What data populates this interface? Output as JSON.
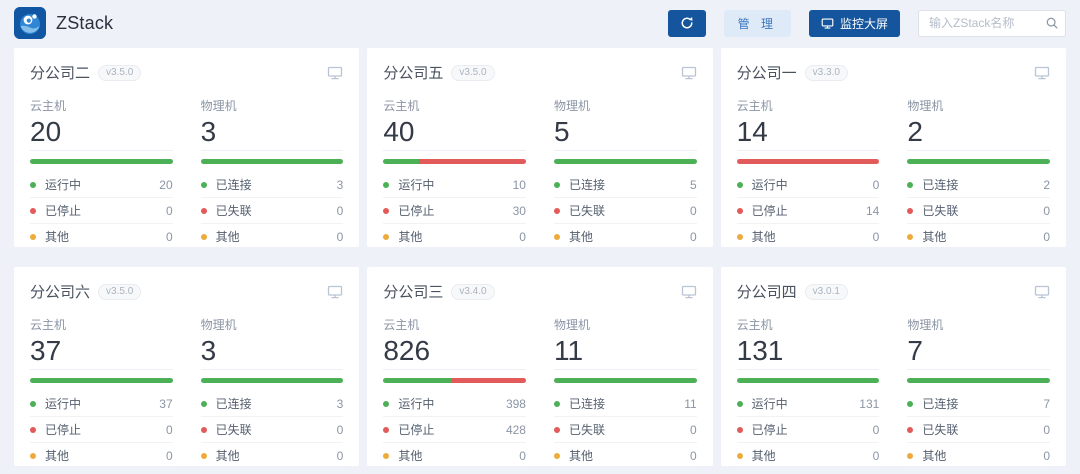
{
  "colors": {
    "primary": "#15559d",
    "green": "#4cb056",
    "red": "#e25a5a",
    "yellow": "#edab3d"
  },
  "header": {
    "app_title": "ZStack",
    "manage_label": "管 理",
    "monitor_label": "监控大屏",
    "search_placeholder": "输入ZStack名称",
    "icons": {
      "refresh": "refresh-icon",
      "monitor": "monitor-icon",
      "search": "search-icon"
    }
  },
  "cards": [
    {
      "title": "分公司二",
      "version": "v3.5.0",
      "vm": {
        "label": "云主机",
        "total": "20",
        "green_pct": 100,
        "red_pct": 0,
        "rows": [
          {
            "label": "运行中",
            "value": "20"
          },
          {
            "label": "已停止",
            "value": "0"
          },
          {
            "label": "其他",
            "value": "0"
          }
        ]
      },
      "host": {
        "label": "物理机",
        "total": "3",
        "green_pct": 100,
        "red_pct": 0,
        "rows": [
          {
            "label": "已连接",
            "value": "3"
          },
          {
            "label": "已失联",
            "value": "0"
          },
          {
            "label": "其他",
            "value": "0"
          }
        ]
      }
    },
    {
      "title": "分公司五",
      "version": "v3.5.0",
      "vm": {
        "label": "云主机",
        "total": "40",
        "green_pct": 25,
        "red_pct": 75,
        "rows": [
          {
            "label": "运行中",
            "value": "10"
          },
          {
            "label": "已停止",
            "value": "30"
          },
          {
            "label": "其他",
            "value": "0"
          }
        ]
      },
      "host": {
        "label": "物理机",
        "total": "5",
        "green_pct": 100,
        "red_pct": 0,
        "rows": [
          {
            "label": "已连接",
            "value": "5"
          },
          {
            "label": "已失联",
            "value": "0"
          },
          {
            "label": "其他",
            "value": "0"
          }
        ]
      }
    },
    {
      "title": "分公司一",
      "version": "v3.3.0",
      "vm": {
        "label": "云主机",
        "total": "14",
        "green_pct": 0,
        "red_pct": 100,
        "rows": [
          {
            "label": "运行中",
            "value": "0"
          },
          {
            "label": "已停止",
            "value": "14"
          },
          {
            "label": "其他",
            "value": "0"
          }
        ]
      },
      "host": {
        "label": "物理机",
        "total": "2",
        "green_pct": 100,
        "red_pct": 0,
        "rows": [
          {
            "label": "已连接",
            "value": "2"
          },
          {
            "label": "已失联",
            "value": "0"
          },
          {
            "label": "其他",
            "value": "0"
          }
        ]
      }
    },
    {
      "title": "分公司六",
      "version": "v3.5.0",
      "vm": {
        "label": "云主机",
        "total": "37",
        "green_pct": 100,
        "red_pct": 0,
        "rows": [
          {
            "label": "运行中",
            "value": "37"
          },
          {
            "label": "已停止",
            "value": "0"
          },
          {
            "label": "其他",
            "value": "0"
          }
        ]
      },
      "host": {
        "label": "物理机",
        "total": "3",
        "green_pct": 100,
        "red_pct": 0,
        "rows": [
          {
            "label": "已连接",
            "value": "3"
          },
          {
            "label": "已失联",
            "value": "0"
          },
          {
            "label": "其他",
            "value": "0"
          }
        ]
      }
    },
    {
      "title": "分公司三",
      "version": "v3.4.0",
      "vm": {
        "label": "云主机",
        "total": "826",
        "green_pct": 48,
        "red_pct": 52,
        "rows": [
          {
            "label": "运行中",
            "value": "398"
          },
          {
            "label": "已停止",
            "value": "428"
          },
          {
            "label": "其他",
            "value": "0"
          }
        ]
      },
      "host": {
        "label": "物理机",
        "total": "11",
        "green_pct": 100,
        "red_pct": 0,
        "rows": [
          {
            "label": "已连接",
            "value": "11"
          },
          {
            "label": "已失联",
            "value": "0"
          },
          {
            "label": "其他",
            "value": "0"
          }
        ]
      }
    },
    {
      "title": "分公司四",
      "version": "v3.0.1",
      "vm": {
        "label": "云主机",
        "total": "131",
        "green_pct": 100,
        "red_pct": 0,
        "rows": [
          {
            "label": "运行中",
            "value": "131"
          },
          {
            "label": "已停止",
            "value": "0"
          },
          {
            "label": "其他",
            "value": "0"
          }
        ]
      },
      "host": {
        "label": "物理机",
        "total": "7",
        "green_pct": 100,
        "red_pct": 0,
        "rows": [
          {
            "label": "已连接",
            "value": "7"
          },
          {
            "label": "已失联",
            "value": "0"
          },
          {
            "label": "其他",
            "value": "0"
          }
        ]
      }
    }
  ]
}
